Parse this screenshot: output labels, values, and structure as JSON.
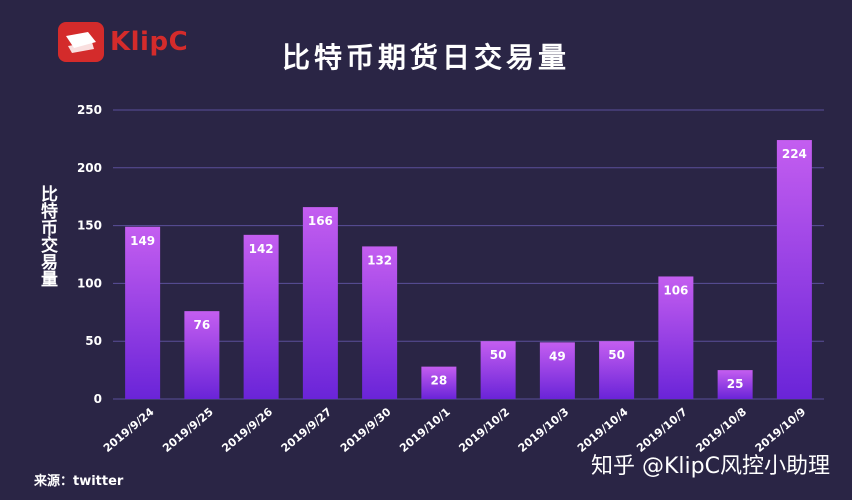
{
  "header": {
    "logo_text": "KlipC",
    "title": "比特币期货日交易量"
  },
  "footer": {
    "source": "来源：twitter",
    "watermark": "知乎 @KlipC风控小助理"
  },
  "colors": {
    "background": "#2a2545",
    "bar_top": "#c45ef0",
    "bar_bottom": "#6a24d8",
    "grid": "#5a4f9a",
    "brand_red": "#d42b2b"
  },
  "chart_data": {
    "type": "bar",
    "title": "比特币期货日交易量",
    "xlabel": "",
    "ylabel": "比特币交易量",
    "categories": [
      "2019/9/24",
      "2019/9/25",
      "2019/9/26",
      "2019/9/27",
      "2019/9/30",
      "2019/10/1",
      "2019/10/2",
      "2019/10/3",
      "2019/10/4",
      "2019/10/7",
      "2019/10/8",
      "2019/10/9"
    ],
    "values": [
      149,
      76,
      142,
      166,
      132,
      28,
      50,
      49,
      50,
      106,
      25,
      224
    ],
    "ylim": [
      0,
      250
    ],
    "yticks": [
      0,
      50,
      100,
      150,
      200,
      250
    ],
    "grid": true
  }
}
